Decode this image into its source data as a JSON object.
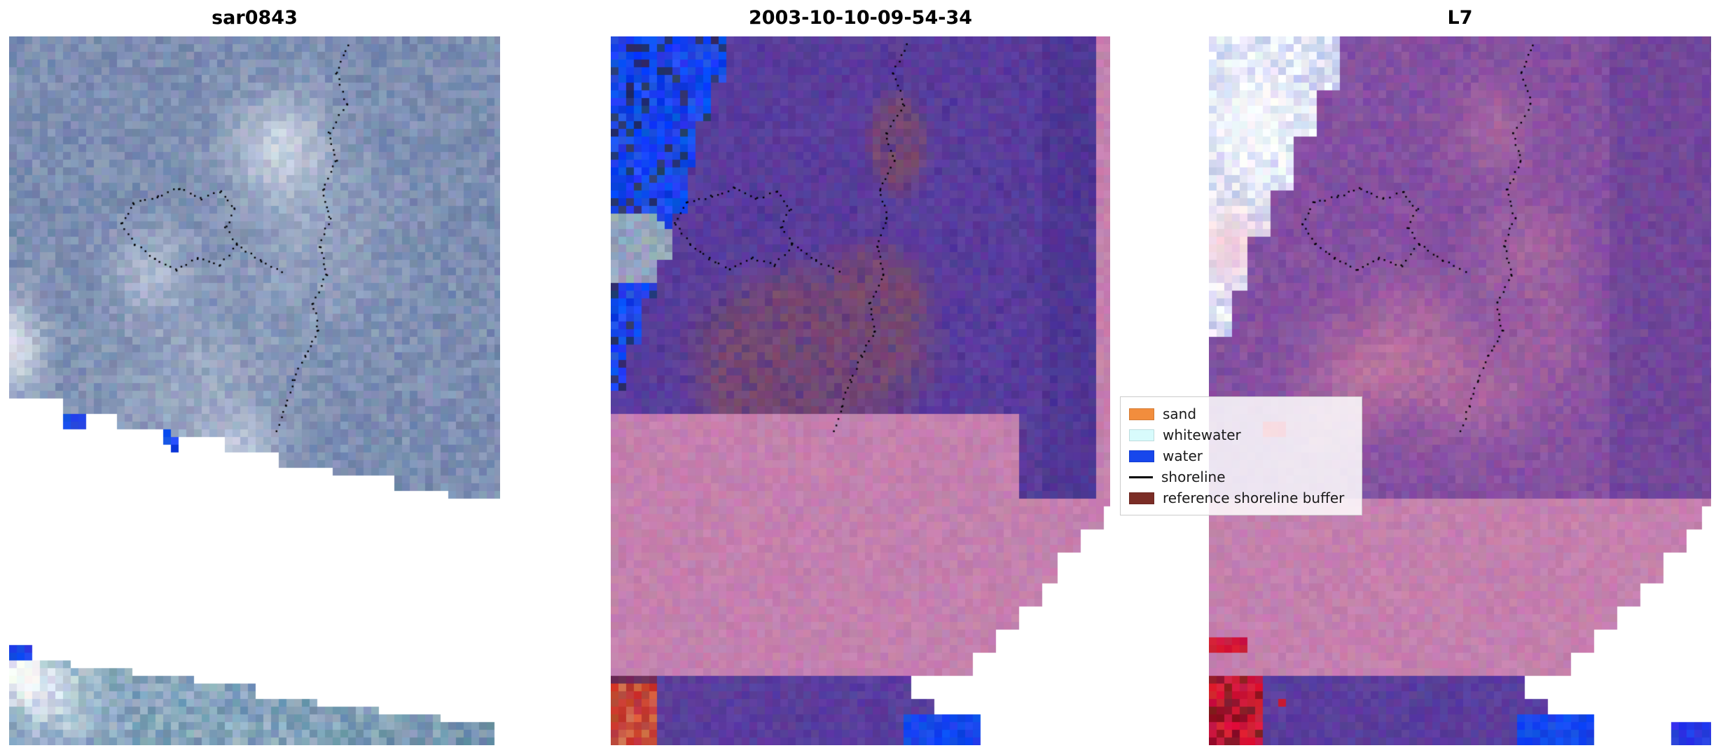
{
  "panels": [
    {
      "id": "sar",
      "title": "sar0843"
    },
    {
      "id": "classified",
      "title": "2003-10-10-09-54-34"
    },
    {
      "id": "l7",
      "title": "L7"
    }
  ],
  "legend": {
    "items": [
      {
        "label": "sand",
        "color": "#f28d3d",
        "type": "patch"
      },
      {
        "label": "whitewater",
        "color": "#d8fbfc",
        "type": "patch"
      },
      {
        "label": "water",
        "color": "#1747ec",
        "type": "patch"
      },
      {
        "label": "shoreline",
        "color": "#000000",
        "type": "line"
      },
      {
        "label": "reference shoreline buffer",
        "color": "#7b2d26",
        "type": "patch"
      }
    ]
  },
  "palette": {
    "sar_dark": "#3c568a",
    "sar_light": "#eef1f6",
    "strip_dark": "#3c6e94",
    "strip_light": "#f4f7f9",
    "water": "#1747ec",
    "gray_blue": "#93a4bd",
    "purple": "#5a3d9c",
    "purple_dark": "#46308c",
    "purple3": "#7c4ba1",
    "purple3_dk": "#5c3a92",
    "maroon": "#7d4b69",
    "plum": "#6a2d58",
    "pink": "#c480ae",
    "rose": "#cf7f9f",
    "red": "#c23b35",
    "salmon": "#d96a4a",
    "bright_red": "#d21838",
    "dark_red": "#8a1525",
    "crimson": "#cc1838",
    "cloud_blue": "#8091d8",
    "indigo": "#5a63c8",
    "pink_cloud": "#f6ccd6",
    "navy": "#27346e",
    "blue2": "#2a3ae0",
    "white": "#ffffff",
    "shoreline": "#000000"
  }
}
